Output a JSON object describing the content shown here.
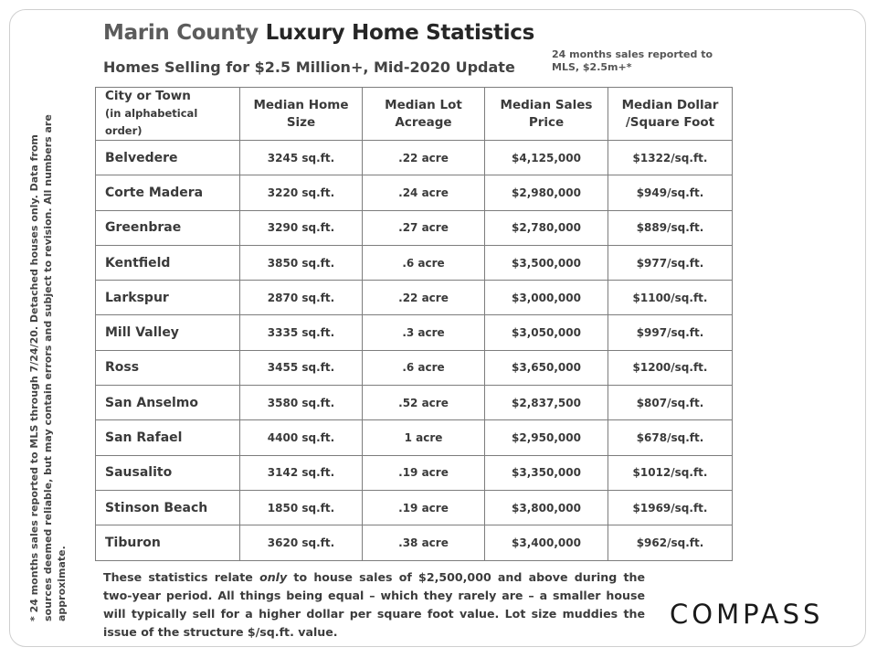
{
  "title": {
    "part1": "Marin County",
    "part2": "Luxury Home Statistics"
  },
  "subtitle": "Homes Selling for $2.5 Million+, Mid-2020 Update",
  "note_top": "24 months sales reported to MLS, $2.5m+*",
  "side_note": "* 24 months sales reported to MLS through 7/24/20. Detached houses only. Data from sources deemed reliable, but may contain errors and subject to revision. All numbers are approximate.",
  "table": {
    "headers": {
      "city": "City or Town",
      "city_sub": "(in alphabetical order)",
      "size": "Median Home Size",
      "lot": "Median Lot Acreage",
      "price": "Median Sales Price",
      "ppsf": "Median Dollar /Square Foot"
    },
    "rows": [
      {
        "city": "Belvedere",
        "size": "3245 sq.ft.",
        "lot": ".22 acre",
        "price": "$4,125,000",
        "ppsf": "$1322/sq.ft."
      },
      {
        "city": "Corte Madera",
        "size": "3220 sq.ft.",
        "lot": ".24 acre",
        "price": "$2,980,000",
        "ppsf": "$949/sq.ft."
      },
      {
        "city": "Greenbrae",
        "size": "3290 sq.ft.",
        "lot": ".27 acre",
        "price": "$2,780,000",
        "ppsf": "$889/sq.ft."
      },
      {
        "city": "Kentfield",
        "size": "3850 sq.ft.",
        "lot": ".6 acre",
        "price": "$3,500,000",
        "ppsf": "$977/sq.ft."
      },
      {
        "city": "Larkspur",
        "size": "2870 sq.ft.",
        "lot": ".22 acre",
        "price": "$3,000,000",
        "ppsf": "$1100/sq.ft."
      },
      {
        "city": "Mill Valley",
        "size": "3335 sq.ft.",
        "lot": ".3 acre",
        "price": "$3,050,000",
        "ppsf": "$997/sq.ft."
      },
      {
        "city": "Ross",
        "size": "3455 sq.ft.",
        "lot": ".6 acre",
        "price": "$3,650,000",
        "ppsf": "$1200/sq.ft."
      },
      {
        "city": "San Anselmo",
        "size": "3580 sq.ft.",
        "lot": ".52 acre",
        "price": "$2,837,500",
        "ppsf": "$807/sq.ft."
      },
      {
        "city": "San Rafael",
        "size": "4400 sq.ft.",
        "lot": "1 acre",
        "price": "$2,950,000",
        "ppsf": "$678/sq.ft."
      },
      {
        "city": "Sausalito",
        "size": "3142 sq.ft.",
        "lot": ".19 acre",
        "price": "$3,350,000",
        "ppsf": "$1012/sq.ft."
      },
      {
        "city": "Stinson Beach",
        "size": "1850 sq.ft.",
        "lot": ".19 acre",
        "price": "$3,800,000",
        "ppsf": "$1969/sq.ft."
      },
      {
        "city": "Tiburon",
        "size": "3620 sq.ft.",
        "lot": ".38 acre",
        "price": "$3,400,000",
        "ppsf": "$962/sq.ft."
      }
    ]
  },
  "footer": {
    "part1": "These statistics relate ",
    "emph": "only",
    "part2": " to house sales of $2,500,000 and above during the two-year period. All things being equal – which they rarely are – a smaller house will typically sell for a higher dollar per square foot value. Lot size muddies the issue of the structure $/sq.ft. value."
  },
  "logo": "COMPASS"
}
